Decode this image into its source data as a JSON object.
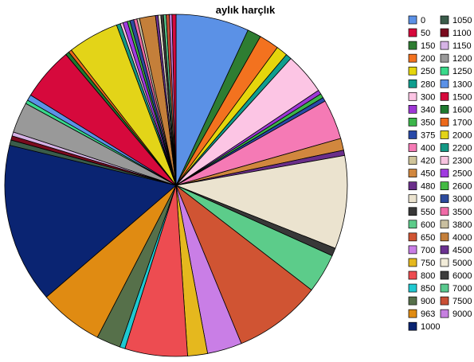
{
  "chart_data": {
    "type": "pie",
    "title": "aylık harçlık",
    "legend_position": "right",
    "slices": [
      {
        "label": "0",
        "color": "#5b91e6",
        "value": 2.76
      },
      {
        "label": "150",
        "color": "#2e7d32",
        "value": 0.52
      },
      {
        "label": "200",
        "color": "#f3721f",
        "value": 0.75
      },
      {
        "label": "250",
        "color": "#e5d60c",
        "value": 0.43
      },
      {
        "label": "280",
        "color": "#0f9e8e",
        "value": 0.22
      },
      {
        "label": "300",
        "color": "#fcc5e4",
        "value": 1.57
      },
      {
        "label": "340",
        "color": "#9e37d6",
        "value": 0.16
      },
      {
        "label": "350",
        "color": "#3bb54a",
        "value": 0.16
      },
      {
        "label": "375",
        "color": "#2849a8",
        "value": 0.15
      },
      {
        "label": "400",
        "color": "#f57ab5",
        "value": 1.51
      },
      {
        "label": "450",
        "color": "#d1873e",
        "value": 0.45
      },
      {
        "label": "480",
        "color": "#6a2e8a",
        "value": 0.2
      },
      {
        "label": "500",
        "color": "#ebe3cf",
        "value": 3.52
      },
      {
        "label": "550",
        "color": "#383838",
        "value": 0.3
      },
      {
        "label": "600",
        "color": "#5ccc8a",
        "value": 1.49
      },
      {
        "label": "650",
        "color": "#d05433",
        "value": 3.32
      },
      {
        "label": "700",
        "color": "#c97ee6",
        "value": 1.31
      },
      {
        "label": "750",
        "color": "#e5b81e",
        "value": 0.75
      },
      {
        "label": "800",
        "color": "#ed4c51",
        "value": 2.36
      },
      {
        "label": "850",
        "color": "#1fc9d1",
        "value": 0.2
      },
      {
        "label": "900",
        "color": "#56704a",
        "value": 0.91
      },
      {
        "label": "963",
        "color": "#e08b12",
        "value": 2.43
      },
      {
        "label": "1000",
        "color": "#0a2472",
        "value": 6.04
      },
      {
        "label": "1050",
        "color": "#3a5c4a",
        "value": 0.2
      },
      {
        "label": "1100",
        "color": "#7a0a1e",
        "value": 0.16
      },
      {
        "label": "1150",
        "color": "#d6b3e6",
        "value": 0.15
      },
      {
        "label": "1200",
        "color": "#999999",
        "value": 1.16
      },
      {
        "label": "1250",
        "color": "#39d98a",
        "value": 0.14
      },
      {
        "label": "1300",
        "color": "#5b91e6",
        "value": 0.22
      },
      {
        "label": "1500",
        "color": "#d6093c",
        "value": 2.01
      },
      {
        "label": "1600",
        "color": "#1e7a2f",
        "value": 0.14
      },
      {
        "label": "1700",
        "color": "#ed6a1c",
        "value": 0.12
      },
      {
        "label": "2000",
        "color": "#e3d418",
        "value": 1.93
      },
      {
        "label": "2200",
        "color": "#139985",
        "value": 0.15
      },
      {
        "label": "2300",
        "color": "#f7c4e0",
        "value": 0.1
      },
      {
        "label": "2500",
        "color": "#a03be0",
        "value": 0.17
      },
      {
        "label": "2600",
        "color": "#43ba43",
        "value": 0.1
      },
      {
        "label": "3000",
        "color": "#2d4b9e",
        "value": 0.15
      },
      {
        "label": "3500",
        "color": "#f06ba8",
        "value": 0.12
      },
      {
        "label": "3800",
        "color": "#c9bfa0",
        "value": 0.1
      },
      {
        "label": "4000",
        "color": "#c47f3a",
        "value": 0.6
      },
      {
        "label": "4500",
        "color": "#6b3191",
        "value": 0.1
      },
      {
        "label": "5000",
        "color": "#f2ecd9",
        "value": 0.1
      },
      {
        "label": "6000",
        "color": "#3d3d3d",
        "value": 0.1
      },
      {
        "label": "7000",
        "color": "#59c98e",
        "value": 0.1
      },
      {
        "label": "7500",
        "color": "#c94f34",
        "value": 0.12
      },
      {
        "label": "9000",
        "color": "#c680e0",
        "value": 0.1
      },
      {
        "label": "50",
        "color": "#d6093c",
        "value": 0.15
      }
    ]
  }
}
